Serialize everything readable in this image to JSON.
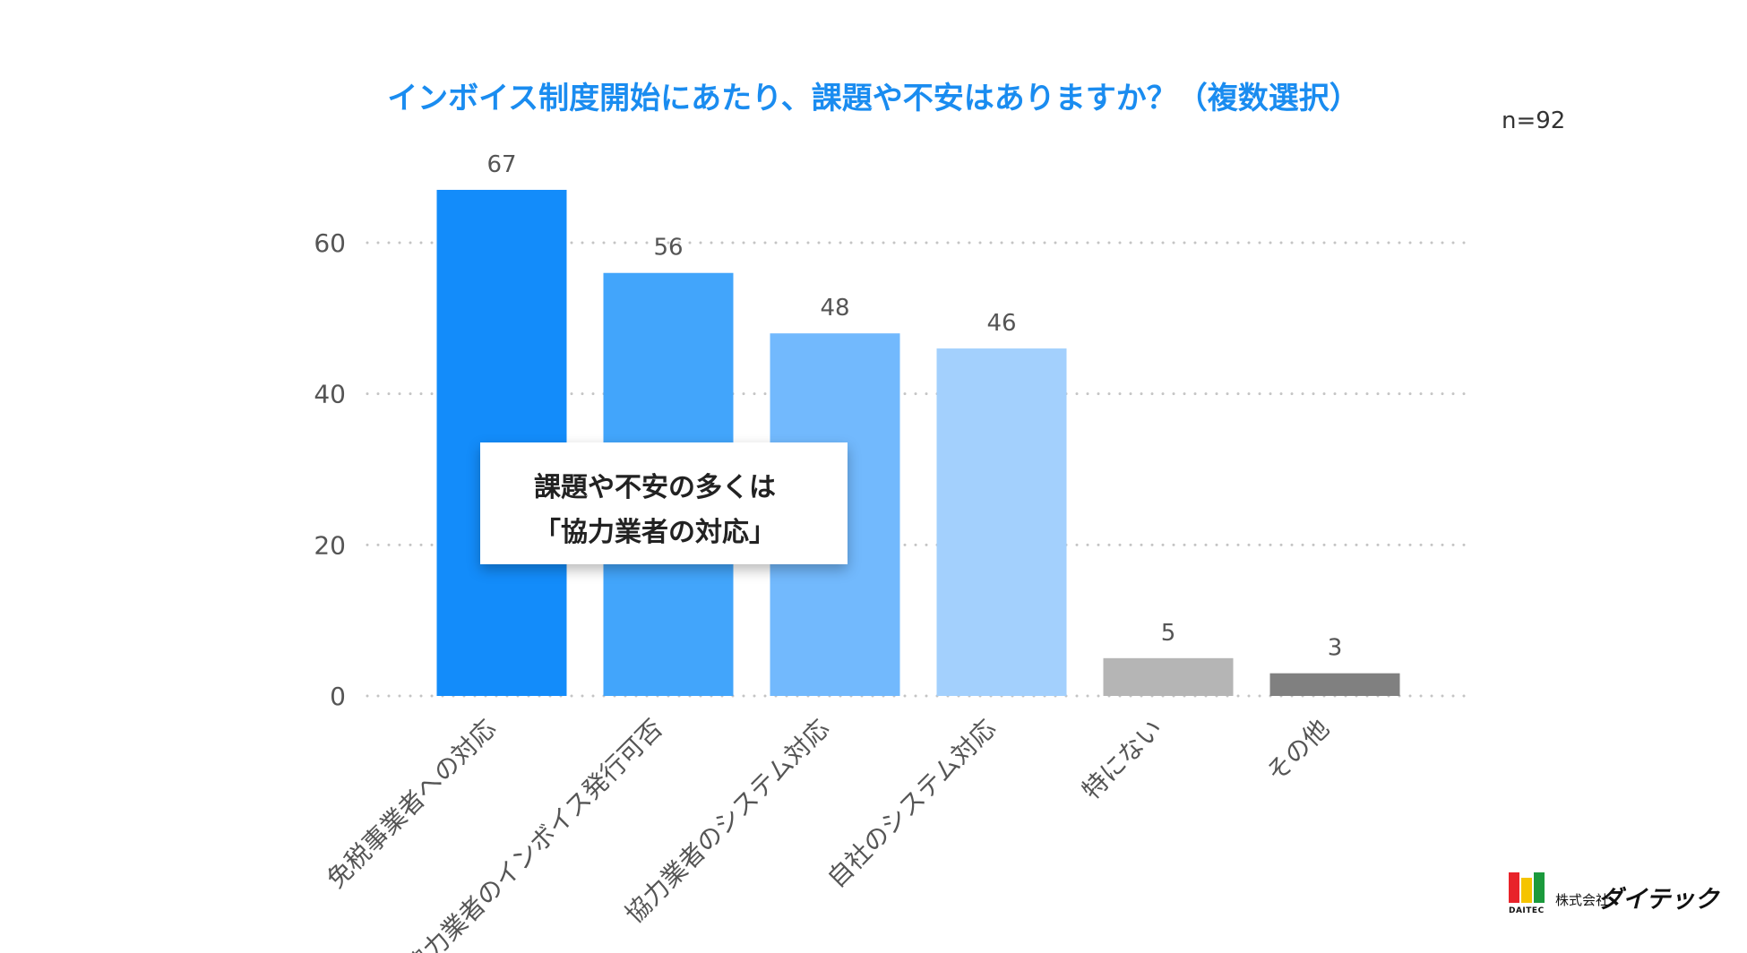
{
  "chart_data": {
    "type": "bar",
    "title": "インボイス制度開始にあたり、課題や不安はありますか？（複数選択）",
    "sample_size": "n=92",
    "categories": [
      "免税事業者への対応",
      "協力業者のインボイス発行可否",
      "協力業者のシステム対応",
      "自社のシステム対応",
      "特にない",
      "その他"
    ],
    "values": [
      67,
      56,
      48,
      46,
      5,
      3
    ],
    "colors": [
      "#138cfa",
      "#42a5fb",
      "#72b9fd",
      "#a3d0fd",
      "#b5b5b5",
      "#808080"
    ],
    "ylim": [
      0,
      70
    ],
    "yticks": [
      0,
      20,
      40,
      60
    ],
    "grid": true,
    "grid_style": "dotted",
    "xlabel": "",
    "ylabel": ""
  },
  "callout": {
    "line1": "課題や不安の多くは",
    "line2": "「協力業者の対応」"
  },
  "brand": {
    "mark": "DAI",
    "mark_sub": "DAITEC",
    "company_prefix": "株式会社",
    "company_name": "ダイテック"
  }
}
